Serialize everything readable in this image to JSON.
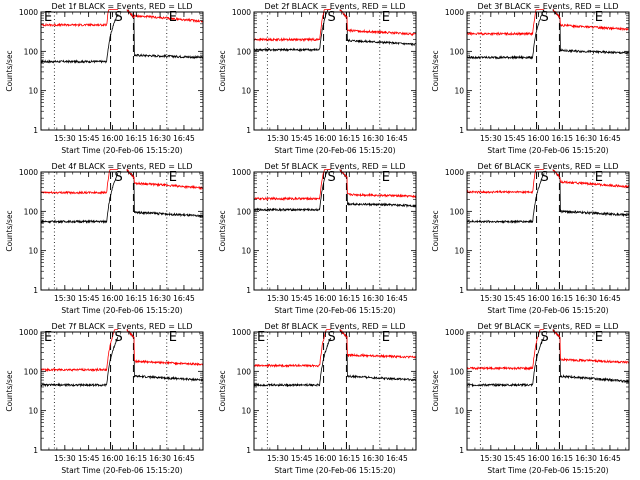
{
  "chart_data": [
    {
      "type": "line",
      "title": "Det 1f BLACK = Events, RED = LLD",
      "ylabel": "Counts/sec",
      "xlabel": "Start Time (20-Feb-06 15:15:20)",
      "x_ticks": [
        "15:30",
        "15:45",
        "16:00",
        "16:15",
        "16:30",
        "16:45"
      ],
      "y_ticks": [
        "1",
        "10",
        "100",
        "1000"
      ],
      "ylim": [
        1,
        1000
      ],
      "markers": [
        "E",
        "S",
        "E"
      ],
      "series": [
        {
          "name": "Events",
          "color": "#000000",
          "pre": 55,
          "post": 80,
          "end_post": 70
        },
        {
          "name": "LLD",
          "color": "#ff0000",
          "pre": 470,
          "post": 800,
          "end_post": 580
        }
      ]
    },
    {
      "type": "line",
      "title": "Det 2f BLACK = Events, RED = LLD",
      "ylabel": "Counts/sec",
      "xlabel": "Start Time (20-Feb-06 15:15:20)",
      "x_ticks": [
        "15:30",
        "15:45",
        "16:00",
        "16:15",
        "16:30",
        "16:45"
      ],
      "y_ticks": [
        "1",
        "10",
        "100",
        "1000"
      ],
      "ylim": [
        1,
        1000
      ],
      "markers": [
        "S",
        "E"
      ],
      "series": [
        {
          "name": "Events",
          "color": "#000000",
          "pre": 110,
          "post": 190,
          "end_post": 150
        },
        {
          "name": "LLD",
          "color": "#ff0000",
          "pre": 200,
          "post": 340,
          "end_post": 270
        }
      ]
    },
    {
      "type": "line",
      "title": "Det 3f BLACK = Events, RED = LLD",
      "ylabel": "Counts/sec",
      "xlabel": "Start Time (20-Feb-06 15:15:20)",
      "x_ticks": [
        "15:30",
        "15:45",
        "16:00",
        "16:15",
        "16:30",
        "16:45"
      ],
      "y_ticks": [
        "1",
        "10",
        "100",
        "1000"
      ],
      "ylim": [
        1,
        1000
      ],
      "markers": [
        "S",
        "E"
      ],
      "series": [
        {
          "name": "Events",
          "color": "#000000",
          "pre": 70,
          "post": 105,
          "end_post": 90
        },
        {
          "name": "LLD",
          "color": "#ff0000",
          "pre": 280,
          "post": 460,
          "end_post": 360
        }
      ]
    },
    {
      "type": "line",
      "title": "Det 4f BLACK = Events, RED = LLD",
      "ylabel": "Counts/sec",
      "xlabel": "Start Time (20-Feb-06 15:15:20)",
      "x_ticks": [
        "15:30",
        "15:45",
        "16:00",
        "16:15",
        "16:30",
        "16:45"
      ],
      "y_ticks": [
        "1",
        "10",
        "100",
        "1000"
      ],
      "ylim": [
        1,
        1000
      ],
      "markers": [
        "S",
        "E"
      ],
      "series": [
        {
          "name": "Events",
          "color": "#000000",
          "pre": 55,
          "post": 95,
          "end_post": 75
        },
        {
          "name": "LLD",
          "color": "#ff0000",
          "pre": 300,
          "post": 520,
          "end_post": 390
        }
      ]
    },
    {
      "type": "line",
      "title": "Det 5f BLACK = Events, RED = LLD",
      "ylabel": "Counts/sec",
      "xlabel": "Start Time (20-Feb-06 15:15:20)",
      "x_ticks": [
        "15:30",
        "15:45",
        "16:00",
        "16:15",
        "16:30",
        "16:45"
      ],
      "y_ticks": [
        "1",
        "10",
        "100",
        "1000"
      ],
      "ylim": [
        1,
        1000
      ],
      "markers": [
        "S",
        "E"
      ],
      "series": [
        {
          "name": "Events",
          "color": "#000000",
          "pre": 110,
          "post": 155,
          "end_post": 140
        },
        {
          "name": "LLD",
          "color": "#ff0000",
          "pre": 210,
          "post": 270,
          "end_post": 240
        }
      ]
    },
    {
      "type": "line",
      "title": "Det 6f BLACK = Events, RED = LLD",
      "ylabel": "Counts/sec",
      "xlabel": "Start Time (20-Feb-06 15:15:20)",
      "x_ticks": [
        "15:30",
        "15:45",
        "16:00",
        "16:15",
        "16:30",
        "16:45"
      ],
      "y_ticks": [
        "1",
        "10",
        "100",
        "1000"
      ],
      "ylim": [
        1,
        1000
      ],
      "markers": [
        "S",
        "E"
      ],
      "series": [
        {
          "name": "Events",
          "color": "#000000",
          "pre": 55,
          "post": 100,
          "end_post": 80
        },
        {
          "name": "LLD",
          "color": "#ff0000",
          "pre": 310,
          "post": 560,
          "end_post": 420
        }
      ]
    },
    {
      "type": "line",
      "title": "Det 7f BLACK = Events, RED = LLD",
      "ylabel": "Counts/sec",
      "xlabel": "Start Time (20-Feb-06 15:15:20)",
      "x_ticks": [
        "15:30",
        "15:45",
        "16:00",
        "16:15",
        "16:30",
        "16:45"
      ],
      "y_ticks": [
        "1",
        "10",
        "100",
        "1000"
      ],
      "ylim": [
        1,
        1000
      ],
      "markers": [
        "E",
        "S",
        "E"
      ],
      "series": [
        {
          "name": "Events",
          "color": "#000000",
          "pre": 45,
          "post": 75,
          "end_post": 60
        },
        {
          "name": "LLD",
          "color": "#ff0000",
          "pre": 110,
          "post": 180,
          "end_post": 150
        }
      ]
    },
    {
      "type": "line",
      "title": "Det 8f BLACK = Events, RED = LLD",
      "ylabel": "Counts/sec",
      "xlabel": "Start Time (20-Feb-06 15:15:20)",
      "x_ticks": [
        "15:30",
        "15:45",
        "16:00",
        "16:15",
        "16:30",
        "16:45"
      ],
      "y_ticks": [
        "1",
        "10",
        "100",
        "1000"
      ],
      "ylim": [
        1,
        1000
      ],
      "markers": [
        "E",
        "S",
        "E"
      ],
      "series": [
        {
          "name": "Events",
          "color": "#000000",
          "pre": 45,
          "post": 75,
          "end_post": 60
        },
        {
          "name": "LLD",
          "color": "#ff0000",
          "pre": 140,
          "post": 260,
          "end_post": 230
        }
      ]
    },
    {
      "type": "line",
      "title": "Det 9f BLACK = Events, RED = LLD",
      "ylabel": "Counts/sec",
      "xlabel": "Start Time (20-Feb-06 15:15:20)",
      "x_ticks": [
        "15:30",
        "15:45",
        "16:00",
        "16:15",
        "16:30",
        "16:45"
      ],
      "y_ticks": [
        "1",
        "10",
        "100",
        "1000"
      ],
      "ylim": [
        1,
        1000
      ],
      "markers": [
        "S",
        "E"
      ],
      "series": [
        {
          "name": "Events",
          "color": "#000000",
          "pre": 45,
          "post": 75,
          "end_post": 55
        },
        {
          "name": "LLD",
          "color": "#ff0000",
          "pre": 120,
          "post": 200,
          "end_post": 170
        }
      ]
    }
  ]
}
